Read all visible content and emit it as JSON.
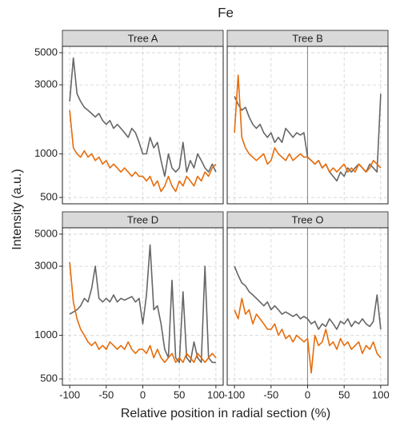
{
  "title": "Fe",
  "xlabel": "Relative position in radial section (%)",
  "ylabel": "Intensity (a.u.)",
  "chart_data": [
    {
      "type": "line",
      "title": "Tree A",
      "log_y": true,
      "grid": true,
      "xlim": [
        -110,
        110
      ],
      "ylim": [
        452,
        5530
      ],
      "xticks": [
        -100,
        -50,
        0,
        50,
        100
      ],
      "yticks": [
        500,
        1000,
        3000,
        5000
      ],
      "x": [
        -100,
        -95,
        -90,
        -85,
        -80,
        -75,
        -70,
        -65,
        -60,
        -55,
        -50,
        -45,
        -40,
        -35,
        -30,
        -25,
        -20,
        -15,
        -10,
        -5,
        0,
        5,
        10,
        15,
        20,
        25,
        30,
        35,
        40,
        45,
        50,
        55,
        60,
        65,
        70,
        75,
        80,
        85,
        90,
        95,
        100
      ],
      "series": [
        {
          "color": "#666666",
          "values": [
            2300,
            4600,
            2600,
            2300,
            2100,
            2000,
            1900,
            1800,
            1900,
            1700,
            1600,
            1700,
            1500,
            1600,
            1500,
            1400,
            1300,
            1500,
            1400,
            1200,
            1000,
            1000,
            1300,
            1100,
            1200,
            900,
            700,
            1000,
            800,
            750,
            800,
            1200,
            750,
            900,
            800,
            1000,
            900,
            800,
            750,
            850,
            750
          ]
        },
        {
          "color": "#e66c0a",
          "values": [
            2000,
            1100,
            1000,
            950,
            1050,
            950,
            1000,
            900,
            950,
            850,
            900,
            800,
            850,
            800,
            750,
            800,
            750,
            700,
            750,
            700,
            700,
            650,
            700,
            600,
            650,
            550,
            600,
            700,
            600,
            550,
            650,
            600,
            700,
            650,
            600,
            700,
            650,
            750,
            700,
            800,
            850
          ]
        }
      ]
    },
    {
      "type": "line",
      "title": "Tree B",
      "log_y": true,
      "grid": true,
      "vline": 0,
      "xlim": [
        -110,
        110
      ],
      "ylim": [
        452,
        5530
      ],
      "xticks": [
        -100,
        -50,
        0,
        50,
        100
      ],
      "yticks": [
        500,
        1000,
        3000,
        5000
      ],
      "x": [
        -100,
        -95,
        -90,
        -85,
        -80,
        -75,
        -70,
        -65,
        -60,
        -55,
        -50,
        -45,
        -40,
        -35,
        -30,
        -25,
        -20,
        -15,
        -10,
        -5,
        0,
        5,
        10,
        15,
        20,
        25,
        30,
        35,
        40,
        45,
        50,
        55,
        60,
        65,
        70,
        75,
        80,
        85,
        90,
        95,
        100
      ],
      "series": [
        {
          "color": "#666666",
          "values": [
            2500,
            2200,
            2000,
            2100,
            1800,
            1600,
            1500,
            1600,
            1400,
            1300,
            1400,
            1200,
            1300,
            1200,
            1500,
            1400,
            1300,
            1400,
            1350,
            1400,
            950,
            900,
            850,
            900,
            800,
            850,
            750,
            700,
            650,
            750,
            700,
            800,
            750,
            800,
            850,
            800,
            750,
            850,
            800,
            750,
            2600
          ]
        },
        {
          "color": "#e66c0a",
          "values": [
            1400,
            3500,
            1300,
            1100,
            1000,
            950,
            900,
            950,
            1000,
            850,
            900,
            1100,
            1000,
            950,
            900,
            1000,
            900,
            950,
            1000,
            950,
            950,
            900,
            850,
            900,
            800,
            850,
            750,
            800,
            750,
            800,
            850,
            750,
            800,
            750,
            850,
            800,
            750,
            800,
            900,
            850,
            800
          ]
        }
      ]
    },
    {
      "type": "line",
      "title": "Tree D",
      "log_y": true,
      "grid": true,
      "xlim": [
        -110,
        110
      ],
      "ylim": [
        452,
        5530
      ],
      "xticks": [
        -100,
        -50,
        0,
        50,
        100
      ],
      "yticks": [
        500,
        1000,
        3000,
        5000
      ],
      "x": [
        -100,
        -95,
        -90,
        -85,
        -80,
        -75,
        -70,
        -65,
        -60,
        -55,
        -50,
        -45,
        -40,
        -35,
        -30,
        -25,
        -20,
        -15,
        -10,
        -5,
        0,
        5,
        10,
        15,
        20,
        25,
        30,
        35,
        40,
        45,
        50,
        55,
        60,
        65,
        70,
        75,
        80,
        85,
        90,
        95,
        100
      ],
      "series": [
        {
          "color": "#666666",
          "values": [
            1400,
            1450,
            1500,
            1600,
            1800,
            1700,
            2100,
            3000,
            1800,
            1700,
            1800,
            1700,
            1900,
            1700,
            1800,
            1750,
            1800,
            1850,
            1700,
            1800,
            1200,
            1900,
            4200,
            1500,
            1600,
            1200,
            800,
            700,
            2400,
            700,
            650,
            2000,
            700,
            650,
            900,
            700,
            650,
            3000,
            700,
            650,
            650
          ]
        },
        {
          "color": "#e66c0a",
          "values": [
            3200,
            1700,
            1300,
            1100,
            1000,
            900,
            850,
            900,
            800,
            850,
            800,
            900,
            850,
            800,
            850,
            800,
            900,
            800,
            750,
            800,
            800,
            750,
            850,
            700,
            800,
            700,
            650,
            700,
            750,
            650,
            700,
            650,
            750,
            700,
            650,
            750,
            700,
            650,
            700,
            750,
            700
          ]
        }
      ]
    },
    {
      "type": "line",
      "title": "Tree O",
      "log_y": true,
      "grid": true,
      "vline": 0,
      "xlim": [
        -110,
        110
      ],
      "ylim": [
        452,
        5530
      ],
      "xticks": [
        -100,
        -50,
        0,
        50,
        100
      ],
      "yticks": [
        500,
        1000,
        3000,
        5000
      ],
      "x": [
        -100,
        -95,
        -90,
        -85,
        -80,
        -75,
        -70,
        -65,
        -60,
        -55,
        -50,
        -45,
        -40,
        -35,
        -30,
        -25,
        -20,
        -15,
        -10,
        -5,
        0,
        5,
        10,
        15,
        20,
        25,
        30,
        35,
        40,
        45,
        50,
        55,
        60,
        65,
        70,
        75,
        80,
        85,
        90,
        95,
        100
      ],
      "series": [
        {
          "color": "#666666",
          "values": [
            3000,
            2600,
            2300,
            2200,
            2000,
            1900,
            1800,
            1700,
            1600,
            1700,
            1500,
            1600,
            1500,
            1400,
            1450,
            1400,
            1350,
            1400,
            1300,
            1350,
            1300,
            1200,
            1250,
            1100,
            1200,
            1150,
            1300,
            1200,
            1100,
            1250,
            1200,
            1300,
            1150,
            1250,
            1200,
            1300,
            1200,
            1150,
            1250,
            1900,
            1100
          ]
        },
        {
          "color": "#e66c0a",
          "values": [
            1500,
            1300,
            1800,
            1400,
            1500,
            1200,
            1400,
            1300,
            1200,
            1100,
            1100,
            1200,
            1000,
            1100,
            950,
            1000,
            900,
            1000,
            950,
            900,
            950,
            550,
            1000,
            850,
            900,
            1100,
            850,
            900,
            800,
            950,
            850,
            900,
            800,
            850,
            900,
            750,
            850,
            800,
            900,
            750,
            700
          ]
        }
      ]
    }
  ]
}
